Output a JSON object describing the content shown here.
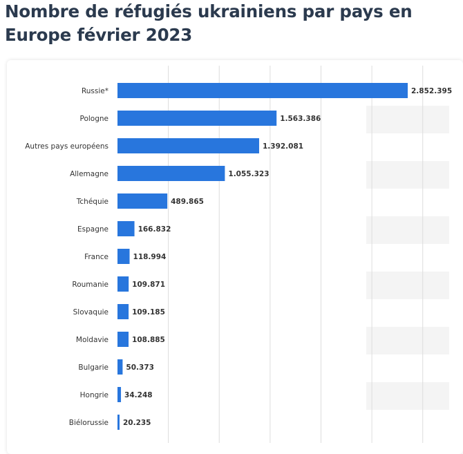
{
  "page": {
    "title": "Nombre de réfugiés ukrainiens par pays en Europe février 2023"
  },
  "colors": {
    "bar": "#2876dd",
    "grid": "#dcdcdc",
    "stripe": "#f4f4f4",
    "title": "#2b3a4e"
  },
  "chart_data": {
    "type": "bar",
    "orientation": "horizontal",
    "title": "Nombre de réfugiés ukrainiens par pays en Europe février 2023",
    "xlabel": "",
    "ylabel": "",
    "xlim": [
      0,
      3000000
    ],
    "grid": true,
    "categories": [
      "Russie*",
      "Pologne",
      "Autres pays européens",
      "Allemagne",
      "Tchéquie",
      "Espagne",
      "France",
      "Roumanie",
      "Slovaquie",
      "Moldavie",
      "Bulgarie",
      "Hongrie",
      "Biélorussie"
    ],
    "values": [
      2852395,
      1563386,
      1392081,
      1055323,
      489865,
      166832,
      118994,
      109871,
      109185,
      108885,
      50373,
      34248,
      20235
    ],
    "value_labels": [
      "2.852.395",
      "1.563.386",
      "1.392.081",
      "1.055.323",
      "489.865",
      "166.832",
      "118.994",
      "109.871",
      "109.185",
      "108.885",
      "50.373",
      "34.248",
      "20.235"
    ]
  }
}
